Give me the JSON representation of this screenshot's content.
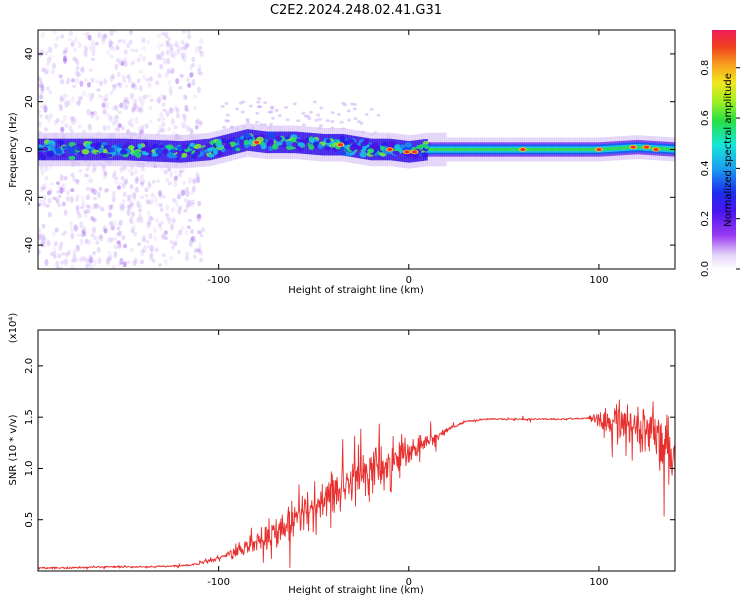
{
  "title": "C2E2.2024.248.02.41.G31",
  "chart_data": [
    {
      "type": "heatmap",
      "name": "spectrogram",
      "xlabel": "Height of straight line (km)",
      "ylabel": "Frequency (Hz)",
      "xlim": [
        -195,
        140
      ],
      "ylim": [
        -50,
        50
      ],
      "xticks": [
        -100,
        0,
        100
      ],
      "yticks": [
        -40,
        -20,
        0,
        20,
        40
      ],
      "colorbar": {
        "label": "Normalized spectral amplitude",
        "range": [
          0,
          0.95
        ],
        "ticks": [
          "0.0",
          "0.2",
          "0.4",
          "0.6",
          "0.8"
        ]
      },
      "ridge": {
        "x": [
          -195,
          -150,
          -120,
          -105,
          -95,
          -85,
          -75,
          -60,
          -45,
          -35,
          -20,
          -10,
          0,
          10,
          40,
          80,
          100,
          120,
          140
        ],
        "y": [
          0,
          0,
          -1,
          0,
          2,
          4,
          3,
          3,
          2,
          2,
          0,
          0,
          -1,
          0,
          0,
          0,
          0,
          1,
          0
        ]
      }
    },
    {
      "type": "line",
      "name": "snr",
      "xlabel": "Height of straight line (km)",
      "ylabel": "SNR (10 * v/v)",
      "yunit": "(x10⁴)",
      "xlim": [
        -195,
        140
      ],
      "ylim": [
        0,
        2.35
      ],
      "xticks": [
        -100,
        0,
        100
      ],
      "yticks": [
        "0.5",
        "1.0",
        "1.5",
        "2.0"
      ],
      "series": [
        {
          "color": "#e8302e",
          "x": [
            -195,
            -180,
            -160,
            -140,
            -120,
            -110,
            -100,
            -90,
            -80,
            -70,
            -60,
            -50,
            -40,
            -30,
            -20,
            -10,
            0,
            10,
            20,
            30,
            40,
            60,
            80,
            95,
            100,
            105,
            110,
            115,
            120,
            125,
            130,
            135,
            140
          ],
          "y": [
            0.03,
            0.03,
            0.04,
            0.04,
            0.05,
            0.07,
            0.12,
            0.2,
            0.28,
            0.38,
            0.5,
            0.62,
            0.75,
            0.88,
            0.98,
            1.06,
            1.15,
            1.25,
            1.38,
            1.46,
            1.48,
            1.48,
            1.48,
            1.49,
            1.49,
            1.48,
            1.47,
            1.45,
            1.4,
            1.35,
            1.3,
            1.2,
            1.1
          ]
        }
      ]
    }
  ]
}
